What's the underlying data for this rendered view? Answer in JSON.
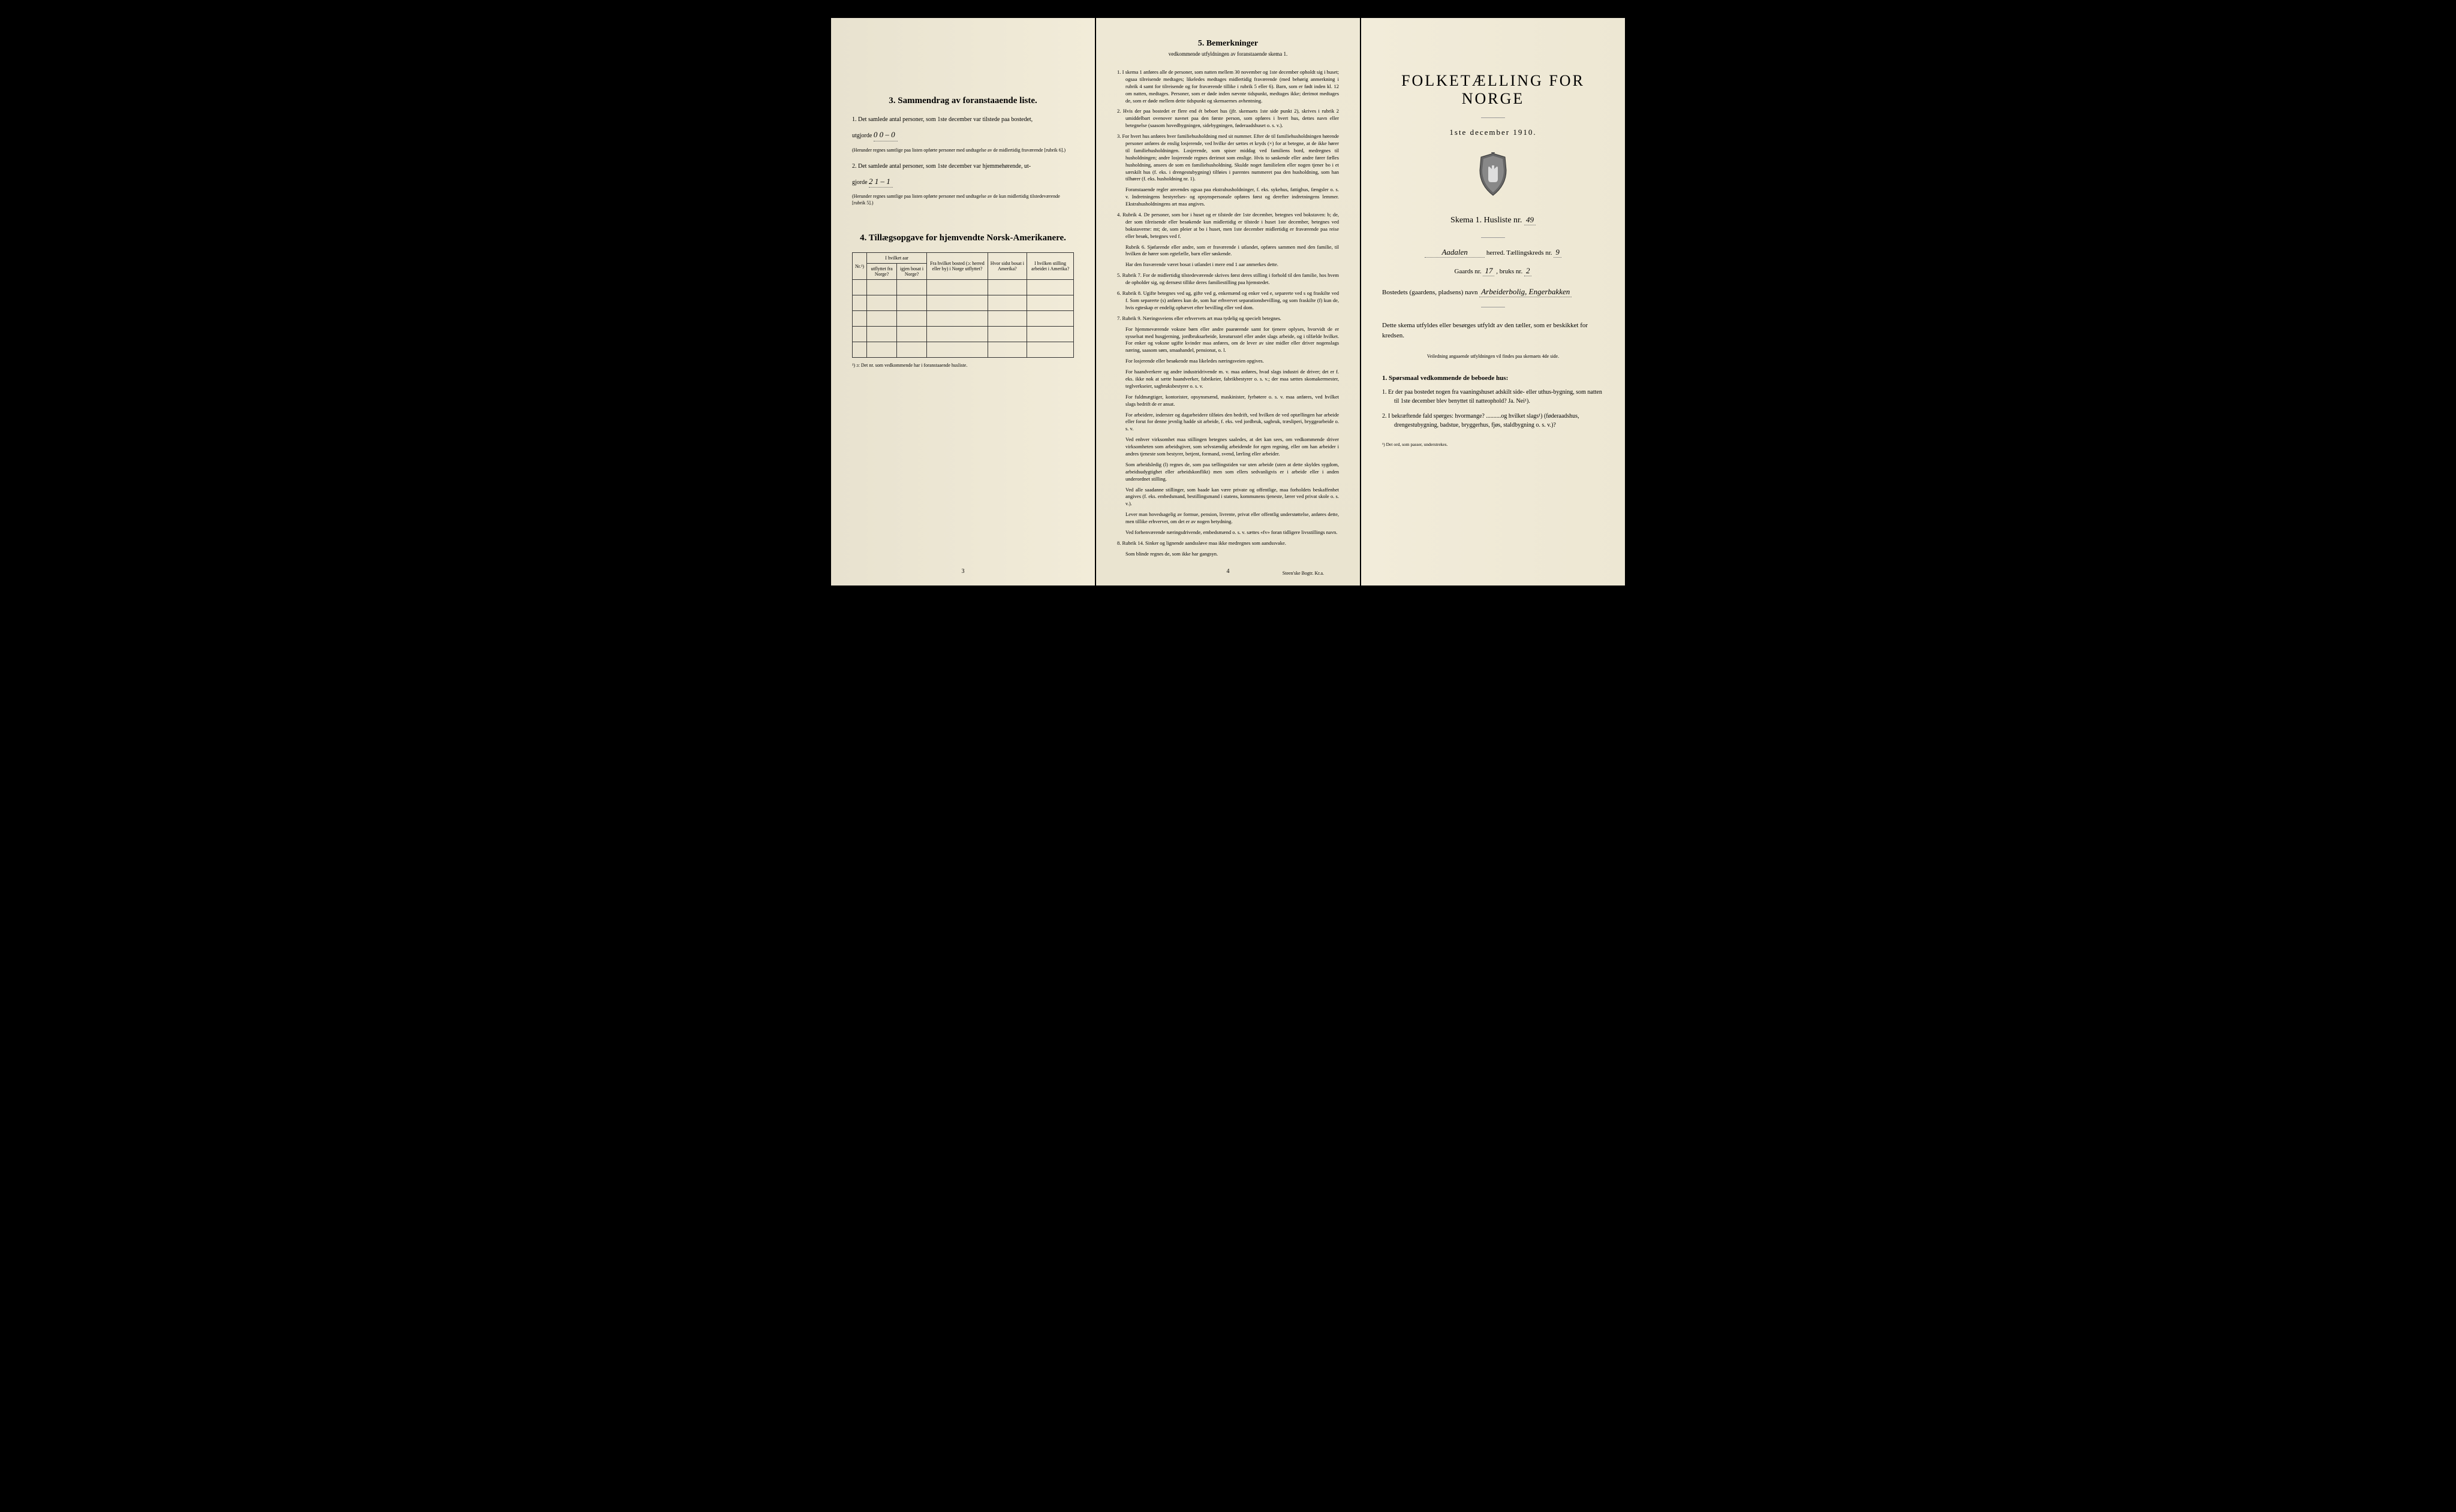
{
  "page1": {
    "section3_title": "3.   Sammendrag av foranstaaende liste.",
    "item1_text": "1. Det samlede antal personer, som 1ste december var tilstede paa bostedet,",
    "item1_line2": "utgjorde",
    "item1_value": "0   0 – 0",
    "item1_note": "(Herunder regnes samtlige paa listen opførte personer med undtagelse av de midlertidig fraværende [rubrik 6].)",
    "item2_text": "2. Det samlede antal personer, som 1ste december var hjemmehørende, ut-",
    "item2_line2": "gjorde",
    "item2_value": "2   1 – 1",
    "item2_note": "(Herunder regnes samtlige paa listen opførte personer med undtagelse av de kun midlertidig tilstedeværende [rubrik 5].)",
    "section4_title": "4.  Tillægsopgave for hjemvendte Norsk-Amerikanere.",
    "table_headers": {
      "col1": "Nr.¹)",
      "col2a": "I hvilket aar",
      "col2b": "utflyttet fra Norge?",
      "col2c": "igjen bosat i Norge?",
      "col3": "Fra hvilket bosted (ɔ: herred eller by) i Norge utflyttet?",
      "col4": "Hvor sidst bosat i Amerika?",
      "col5": "I hvilken stilling arbeidet i Amerika?"
    },
    "table_footnote": "¹) ɔ: Det nr. som vedkommende har i foranstaaende husliste.",
    "page_num": "3"
  },
  "page2": {
    "section5_title": "5.   Bemerkninger",
    "section5_subtitle": "vedkommende utfyldningen av foranstaaende skema 1.",
    "items": [
      {
        "num": "1.",
        "text": "I skema 1 anføres alle de personer, som natten mellem 30 november og 1ste december opholdt sig i huset; ogsaa tilreisende medtages; likeledes medtages midlertidig fraværende (med behørig anmerkning i rubrik 4 samt for tilreisende og for fraværende tillike i rubrik 5 eller 6). Barn, som er født inden kl. 12 om natten, medtages. Personer, som er døde inden nævnte tidspunkt, medtages ikke; derimot medtages de, som er døde mellem dette tidspunkt og skemaernes avhentning."
      },
      {
        "num": "2.",
        "text": "Hvis der paa bostedet er flere end ét beboet hus (jfr. skemaets 1ste side punkt 2), skrives i rubrik 2 umiddelbart ovenover navnet paa den første person, som opføres i hvert hus, dettes navn eller betegnelse (saasom hovedbygningen, sidebygningen, føderaadshuset o. s. v.)."
      },
      {
        "num": "3.",
        "text": "For hvert hus anføres hver familiehusholdning med sit nummer. Efter de til familiehusholdningen hørende personer anføres de enslig losjerende, ved hvilke der sættes et kryds (×) for at betegne, at de ikke hører til familiehusholdningen. Losjerende, som spiser middag ved familiens bord, medregnes til husholdningen; andre losjerende regnes derimot som enslige. Hvis to søskende eller andre fører fælles husholdning, ansees de som en familiehusholdning. Skulde noget familielem eller nogen tjener bo i et særskilt hus (f. eks. i drengestubygning) tilføies i parentes nummeret paa den husholdning, som han tilhører (f. eks. husholdning nr. 1).",
        "extra": "Foranstaaende regler anvendes ogsaa paa ekstrahusholdninger, f. eks. sykehus, fattighus, fængsler o. s. v. Indretningens bestyrelses- og opsynspersonale opføres først og derefter indretningens lemmer. Ekstrahusholdningens art maa angives."
      },
      {
        "num": "4.",
        "text": "Rubrik 4. De personer, som bor i huset og er tilstede der 1ste december, betegnes ved bokstaven: b; de, der som tilreisende eller besøkende kun midlertidig er tilstede i huset 1ste december, betegnes ved bokstaverne: mt; de, som pleier at bo i huset, men 1ste december midlertidig er fraværende paa reise eller besøk, betegnes ved f.",
        "extra": "Rubrik 6. Sjøfarende eller andre, som er fraværende i utlandet, opføres sammen med den familie, til hvilken de hører som egtefælle, barn eller søskende.",
        "extra2": "Har den fraværende været bosat i utlandet i mere end 1 aar anmerkes dette."
      },
      {
        "num": "5.",
        "text": "Rubrik 7. For de midlertidig tilstedeværende skrives først deres stilling i forhold til den familie, hos hvem de opholder sig, og dernæst tillike deres familiestilling paa hjemstedet."
      },
      {
        "num": "6.",
        "text": "Rubrik 8. Ugifte betegnes ved ug, gifte ved g, enkemænd og enker ved e, separerte ved s og fraskilte ved f. Som separerte (s) anføres kun de, som har erhvervet separationsbevilling, og som fraskilte (f) kun de, hvis egteskap er endelig ophævet efter bevilling eller ved dom."
      },
      {
        "num": "7.",
        "text": "Rubrik 9. Næringsveiens eller erhvervets art maa tydelig og specielt betegnes.",
        "extras": [
          "For hjemmeværende voksne børn eller andre paarørende samt for tjenere oplyses, hvorvidt de er sysselsat med husgjerning, jordbruksarbeide, kreatursstel eller andet slags arbeide, og i tilfælde hvilket. For enker og voksne ugifte kvinder maa anføres, om de lever av sine midler eller driver nogenslags næring, saasom søm, smaahandel, pensionat, o. l.",
          "For losjerende eller besøkende maa likeledes næringsveien opgives.",
          "For haandverkere og andre industridrivende m. v. maa anføres, hvad slags industri de driver; det er f. eks. ikke nok at sætte haandverker, fabrikeier, fabrikbestyrer o. s. v.; der maa sættes skomakermester, teglverkseier, sagbruksbestyrer o. s. v.",
          "For fuldmægtiger, kontorister, opsynsmænd, maskinister, fyrbøtere o. s. v. maa anføres, ved hvilket slags bedrift de er ansat.",
          "For arbeidere, inderster og dagarbeidere tilføies den bedrift, ved hvilken de ved optællingen har arbeide eller forut for denne jevnlig hadde sit arbeide, f. eks. ved jordbruk, sagbruk, træsliperi, bryggearbeide o. s. v.",
          "Ved enhver virksomhet maa stillingen betegnes saaledes, at det kan sees, om vedkommende driver virksomheten som arbeidsgiver, som selvstændig arbeidende for egen regning, eller om han arbeider i andres tjeneste som bestyrer, betjent, formand, svend, lærling eller arbeider.",
          "Som arbeidsledig (l) regnes de, som paa tællingstiden var uten arbeide (uten at dette skyldes sygdom, arbeidsudygtighet eller arbeidskonflikt) men som ellers sedvanligvis er i arbeide eller i anden underordnet stilling.",
          "Ved alle saadanne stillinger, som baade kan være private og offentlige, maa forholdets beskaffenhet angives (f. eks. embedsmand, bestillingsmand i statens, kommunens tjeneste, lærer ved privat skole o. s. v.).",
          "Lever man hovedsagelig av formue, pension, livrente, privat eller offentlig understøttelse, anføres dette, men tillike erhvervet, om det er av nogen betydning.",
          "Ved forhenværende næringsdrivende, embedsmænd o. s. v. sættes «fv» foran tidligere livsstillings navn."
        ]
      },
      {
        "num": "8.",
        "text": "Rubrik 14. Sinker og lignende aandssløve maa ikke medregnes som aandssvake.",
        "extra": "Som blinde regnes de, som ikke har gangsyn."
      }
    ],
    "page_num": "4",
    "printer": "Steen'ske Bogtr.  Kr.a."
  },
  "page3": {
    "main_title": "FOLKETÆLLING FOR NORGE",
    "date": "1ste december 1910.",
    "schema_label": "Skema 1.   Husliste nr.",
    "husliste_nr": "49",
    "herred_value": "Aadalen",
    "herred_label": "herred.   Tællingskreds nr.",
    "kreds_nr": "9",
    "gaards_label": "Gaards nr.",
    "gaards_nr": "17",
    "bruks_label": ", bruks nr.",
    "bruks_nr": "2",
    "bostedets_label": "Bostedets (gaardens, pladsens) navn",
    "bostedets_value": "Arbeiderbolig, Engerbakken",
    "intro_text": "Dette skema utfyldes eller besørges utfyldt av den tæller, som er beskikket for kredsen.",
    "intro_subtext": "Veiledning angaaende utfyldningen vil findes paa skemaets 4de side.",
    "section1_title": "1. Spørsmaal vedkommende de beboede hus:",
    "q1": "1. Er der paa bostedet nogen fra vaaningshuset adskilt side- eller uthus-bygning, som natten til 1ste december blev benyttet til natteophold?   Ja.   Nei¹).",
    "q2": "2. I bekræftende fald spørges: hvormange? ..........og hvilket slags¹) (føderaadshus, drengestubygning, badstue, bryggerhus, fjøs, staldbygning o. s. v.)?",
    "footnote": "¹) Det ord, som passer, understrekes."
  }
}
